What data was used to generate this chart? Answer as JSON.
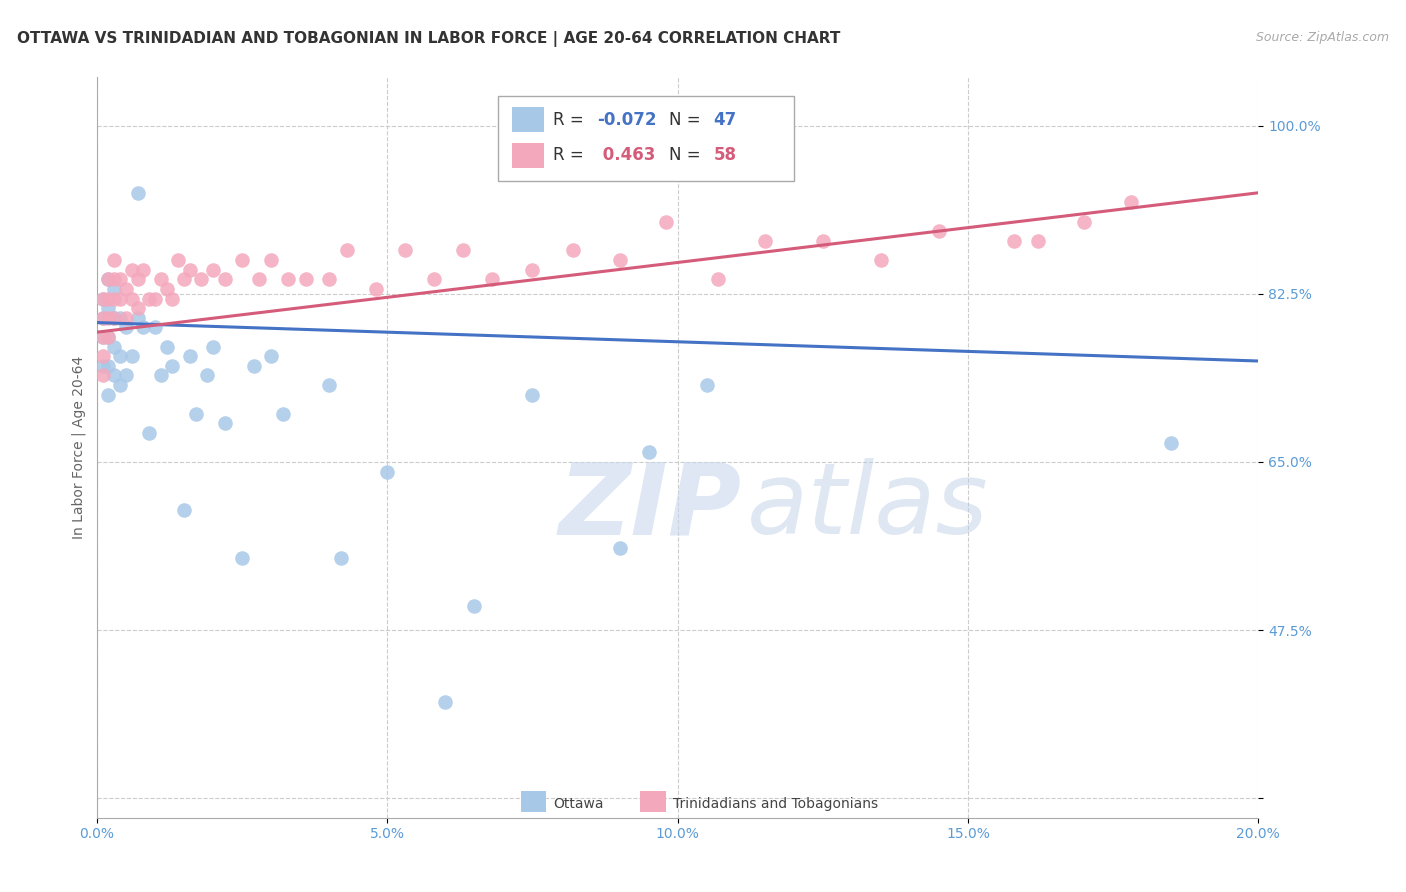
{
  "title": "OTTAWA VS TRINIDADIAN AND TOBAGONIAN IN LABOR FORCE | AGE 20-64 CORRELATION CHART",
  "source": "Source: ZipAtlas.com",
  "ylabel": "In Labor Force | Age 20-64",
  "legend_ottawa": "Ottawa",
  "legend_trini": "Trinidadians and Tobagonians",
  "R_ottawa": -0.072,
  "N_ottawa": 47,
  "R_trini": 0.463,
  "N_trini": 58,
  "xlim": [
    0.0,
    0.2
  ],
  "ylim": [
    0.28,
    1.05
  ],
  "yticks": [
    0.3,
    0.475,
    0.65,
    0.825,
    1.0
  ],
  "ytick_labels": [
    "",
    "47.5%",
    "65.0%",
    "82.5%",
    "100.0%"
  ],
  "xticks": [
    0.0,
    0.05,
    0.1,
    0.15,
    0.2
  ],
  "xtick_labels": [
    "0.0%",
    "5.0%",
    "10.0%",
    "15.0%",
    "20.0%"
  ],
  "color_ottawa": "#a8c8e8",
  "color_trini": "#f4a8bc",
  "line_color_ottawa": "#4472c4",
  "line_color_trini": "#d45c7a",
  "background_color": "#ffffff",
  "watermark_zip": "ZIP",
  "watermark_atlas": "atlas",
  "title_fontsize": 11,
  "axis_label_fontsize": 10,
  "tick_fontsize": 10,
  "ottawa_x": [
    0.001,
    0.001,
    0.001,
    0.001,
    0.002,
    0.002,
    0.002,
    0.002,
    0.002,
    0.003,
    0.003,
    0.003,
    0.003,
    0.004,
    0.004,
    0.004,
    0.005,
    0.005,
    0.006,
    0.007,
    0.007,
    0.008,
    0.009,
    0.01,
    0.011,
    0.012,
    0.013,
    0.015,
    0.016,
    0.017,
    0.019,
    0.02,
    0.022,
    0.025,
    0.027,
    0.03,
    0.032,
    0.04,
    0.042,
    0.05,
    0.06,
    0.065,
    0.075,
    0.09,
    0.095,
    0.105,
    0.185
  ],
  "ottawa_y": [
    0.82,
    0.8,
    0.78,
    0.75,
    0.84,
    0.81,
    0.78,
    0.75,
    0.72,
    0.83,
    0.8,
    0.77,
    0.74,
    0.8,
    0.76,
    0.73,
    0.79,
    0.74,
    0.76,
    0.93,
    0.8,
    0.79,
    0.68,
    0.79,
    0.74,
    0.77,
    0.75,
    0.6,
    0.76,
    0.7,
    0.74,
    0.77,
    0.69,
    0.55,
    0.75,
    0.76,
    0.7,
    0.73,
    0.55,
    0.64,
    0.4,
    0.5,
    0.72,
    0.56,
    0.66,
    0.73,
    0.67
  ],
  "trini_x": [
    0.001,
    0.001,
    0.001,
    0.001,
    0.001,
    0.002,
    0.002,
    0.002,
    0.002,
    0.003,
    0.003,
    0.003,
    0.003,
    0.004,
    0.004,
    0.005,
    0.005,
    0.006,
    0.006,
    0.007,
    0.007,
    0.008,
    0.009,
    0.01,
    0.011,
    0.012,
    0.013,
    0.014,
    0.015,
    0.016,
    0.018,
    0.02,
    0.022,
    0.025,
    0.028,
    0.03,
    0.033,
    0.036,
    0.04,
    0.043,
    0.048,
    0.053,
    0.058,
    0.063,
    0.068,
    0.075,
    0.082,
    0.09,
    0.098,
    0.107,
    0.115,
    0.125,
    0.135,
    0.145,
    0.158,
    0.162,
    0.17,
    0.178
  ],
  "trini_y": [
    0.82,
    0.8,
    0.78,
    0.76,
    0.74,
    0.84,
    0.82,
    0.8,
    0.78,
    0.86,
    0.84,
    0.82,
    0.8,
    0.84,
    0.82,
    0.83,
    0.8,
    0.85,
    0.82,
    0.84,
    0.81,
    0.85,
    0.82,
    0.82,
    0.84,
    0.83,
    0.82,
    0.86,
    0.84,
    0.85,
    0.84,
    0.85,
    0.84,
    0.86,
    0.84,
    0.86,
    0.84,
    0.84,
    0.84,
    0.87,
    0.83,
    0.87,
    0.84,
    0.87,
    0.84,
    0.85,
    0.87,
    0.86,
    0.9,
    0.84,
    0.88,
    0.88,
    0.86,
    0.89,
    0.88,
    0.88,
    0.9,
    0.92
  ]
}
